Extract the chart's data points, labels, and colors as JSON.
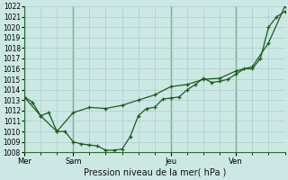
{
  "xlabel": "Pression niveau de la mer( hPa )",
  "ylim": [
    1008,
    1022
  ],
  "bg_color": "#cce8e4",
  "grid_color": "#aacccc",
  "line_color": "#1a5c1a",
  "day_labels": [
    "Mer",
    "Sam",
    "Jeu",
    "Ven"
  ],
  "day_positions": [
    0,
    24,
    72,
    104
  ],
  "xlim": [
    0,
    128
  ],
  "line1_x": [
    0,
    4,
    8,
    12,
    16,
    20,
    24,
    28,
    32,
    36,
    40,
    44,
    48,
    52,
    56,
    60,
    64,
    68,
    72,
    76,
    80,
    84,
    88,
    92,
    96,
    100,
    104,
    108,
    112,
    116,
    120,
    124,
    128
  ],
  "line1_y": [
    1013.3,
    1012.8,
    1011.5,
    1011.8,
    1010.0,
    1010.0,
    1009.0,
    1008.8,
    1008.7,
    1008.6,
    1008.2,
    1008.2,
    1008.3,
    1009.5,
    1011.5,
    1012.2,
    1012.3,
    1013.1,
    1013.2,
    1013.3,
    1014.0,
    1014.5,
    1015.1,
    1014.7,
    1014.8,
    1015.0,
    1015.5,
    1016.0,
    1016.0,
    1017.0,
    1020.0,
    1021.0,
    1021.5
  ],
  "line2_x": [
    0,
    8,
    16,
    24,
    32,
    40,
    48,
    56,
    64,
    72,
    80,
    88,
    96,
    104,
    112,
    120,
    128
  ],
  "line2_y": [
    1013.3,
    1011.5,
    1010.0,
    1011.8,
    1012.3,
    1012.2,
    1012.5,
    1013.0,
    1013.5,
    1014.3,
    1014.5,
    1015.0,
    1015.1,
    1015.8,
    1016.2,
    1018.5,
    1022.0
  ],
  "xlabel_fontsize": 7,
  "ytick_fontsize": 5.5,
  "xtick_fontsize": 6
}
